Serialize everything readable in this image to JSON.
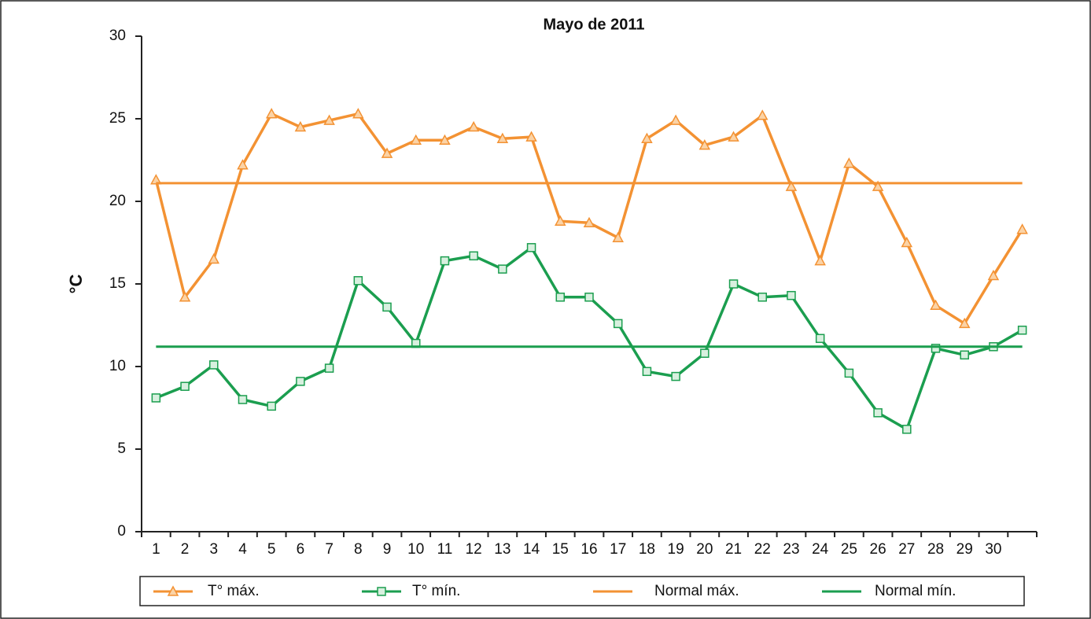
{
  "chart_data": {
    "type": "line",
    "title": "Mayo de 2011",
    "y_label": "°C",
    "categories": [
      "1",
      "2",
      "3",
      "4",
      "5",
      "6",
      "7",
      "8",
      "9",
      "10",
      "11",
      "12",
      "13",
      "14",
      "15",
      "16",
      "17",
      "18",
      "19",
      "20",
      "21",
      "22",
      "23",
      "24",
      "25",
      "26",
      "27",
      "28",
      "29",
      "30",
      null
    ],
    "ylim": [
      0,
      30
    ],
    "yticks": [
      0,
      5,
      10,
      15,
      20,
      25,
      30
    ],
    "series": [
      {
        "name": "T° máx.",
        "color": "#f39233",
        "marker": "triangle",
        "values": [
          21.3,
          14.2,
          16.5,
          22.2,
          25.3,
          24.5,
          24.9,
          25.3,
          22.9,
          23.7,
          23.7,
          24.5,
          23.8,
          23.9,
          18.8,
          18.7,
          17.8,
          23.8,
          24.9,
          23.4,
          23.9,
          25.2,
          20.9,
          16.4,
          22.3,
          20.9,
          17.5,
          13.7,
          12.6,
          15.5,
          18.3
        ]
      },
      {
        "name": "T° mín.",
        "color": "#1b9e4f",
        "marker": "square",
        "values": [
          8.1,
          8.8,
          10.1,
          8.0,
          7.6,
          9.1,
          9.9,
          15.2,
          13.6,
          11.4,
          16.4,
          16.7,
          15.9,
          17.2,
          14.2,
          14.2,
          12.6,
          9.7,
          9.4,
          10.8,
          15.0,
          14.2,
          14.3,
          11.7,
          9.6,
          7.2,
          6.2,
          11.1,
          10.7,
          11.2,
          12.2
        ]
      },
      {
        "name": "Normal máx.",
        "color": "#f39233",
        "marker": null,
        "values": [
          21.1,
          21.1,
          21.1,
          21.1,
          21.1,
          21.1,
          21.1,
          21.1,
          21.1,
          21.1,
          21.1,
          21.1,
          21.1,
          21.1,
          21.1,
          21.1,
          21.1,
          21.1,
          21.1,
          21.1,
          21.1,
          21.1,
          21.1,
          21.1,
          21.1,
          21.1,
          21.1,
          21.1,
          21.1,
          21.1,
          21.1
        ]
      },
      {
        "name": "Normal mín.",
        "color": "#1b9e4f",
        "marker": null,
        "values": [
          11.2,
          11.2,
          11.2,
          11.2,
          11.2,
          11.2,
          11.2,
          11.2,
          11.2,
          11.2,
          11.2,
          11.2,
          11.2,
          11.2,
          11.2,
          11.2,
          11.2,
          11.2,
          11.2,
          11.2,
          11.2,
          11.2,
          11.2,
          11.2,
          11.2,
          11.2,
          11.2,
          11.2,
          11.2,
          11.2,
          11.2
        ]
      }
    ]
  }
}
